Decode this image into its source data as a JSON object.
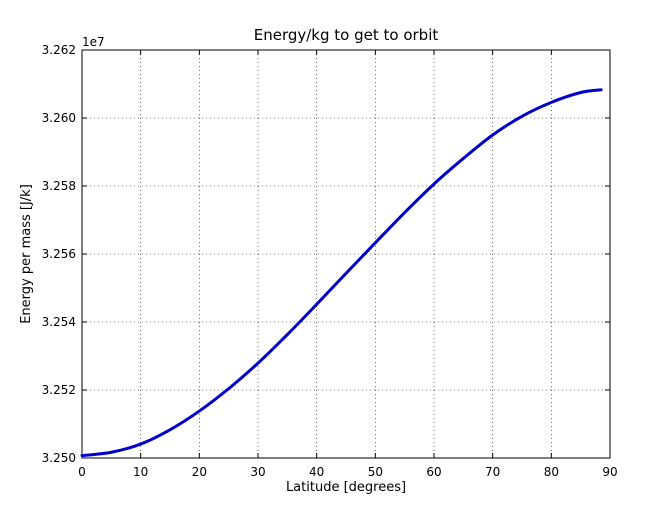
{
  "chart_data": {
    "type": "line",
    "title": "Energy/kg to get to orbit",
    "xlabel": "Latitude [degrees]",
    "ylabel": "Energy per mass [J/k]",
    "y_offset_label": "1e7",
    "xlim": [
      0,
      90
    ],
    "ylim": [
      3.25,
      3.262
    ],
    "xticks": [
      0,
      10,
      20,
      30,
      40,
      50,
      60,
      70,
      80,
      90
    ],
    "yticks": [
      3.25,
      3.252,
      3.254,
      3.256,
      3.258,
      3.26,
      3.262
    ],
    "xtick_labels": [
      "0",
      "10",
      "20",
      "30",
      "40",
      "50",
      "60",
      "70",
      "80",
      "90"
    ],
    "ytick_labels": [
      "3.250",
      "3.252",
      "3.254",
      "3.256",
      "3.258",
      "3.260",
      "3.262"
    ],
    "grid": true,
    "grid_style": "dotted",
    "legend": false,
    "series": [
      {
        "color": "#0000cc",
        "x": [
          0,
          5,
          10,
          15,
          20,
          25,
          30,
          35,
          40,
          45,
          50,
          55,
          60,
          65,
          70,
          75,
          80,
          85,
          88.5
        ],
        "y": [
          3.25007,
          3.25017,
          3.25041,
          3.25083,
          3.25138,
          3.25204,
          3.25279,
          3.25363,
          3.25452,
          3.25543,
          3.25633,
          3.25722,
          3.25806,
          3.25881,
          3.2595,
          3.26005,
          3.26046,
          3.26075,
          3.26083
        ]
      }
    ]
  }
}
